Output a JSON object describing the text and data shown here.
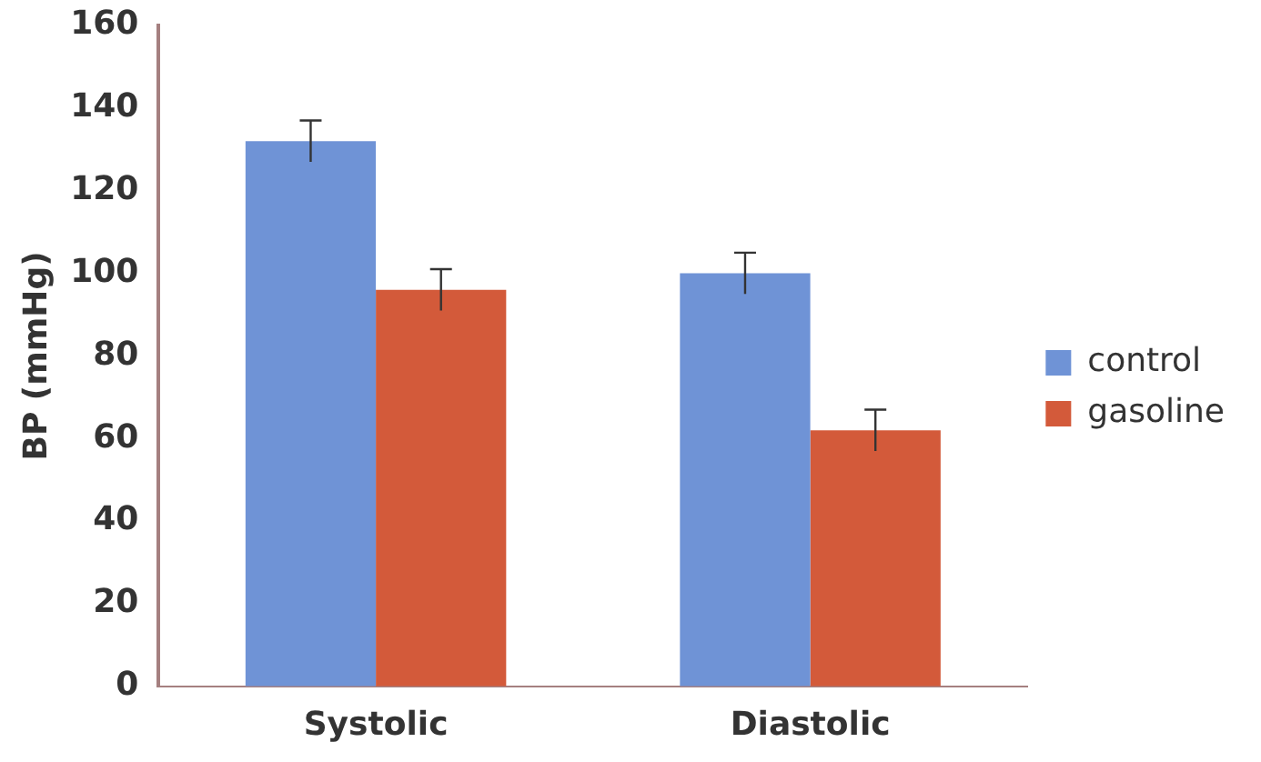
{
  "chart_data": {
    "type": "bar",
    "ylabel": "BP (mmHg)",
    "categories": [
      "Systolic",
      "Diastolic"
    ],
    "series": [
      {
        "name": "control",
        "color": "#6f93d6",
        "values": [
          132,
          100
        ],
        "errors": [
          5,
          5
        ]
      },
      {
        "name": "gasoline",
        "color": "#d35a3a",
        "values": [
          96,
          62
        ],
        "errors": [
          5,
          5
        ]
      }
    ],
    "ylim": [
      0,
      160
    ],
    "yticks": [
      0,
      20,
      40,
      60,
      80,
      100,
      120,
      140,
      160
    ],
    "grid": false,
    "legend": "right"
  }
}
